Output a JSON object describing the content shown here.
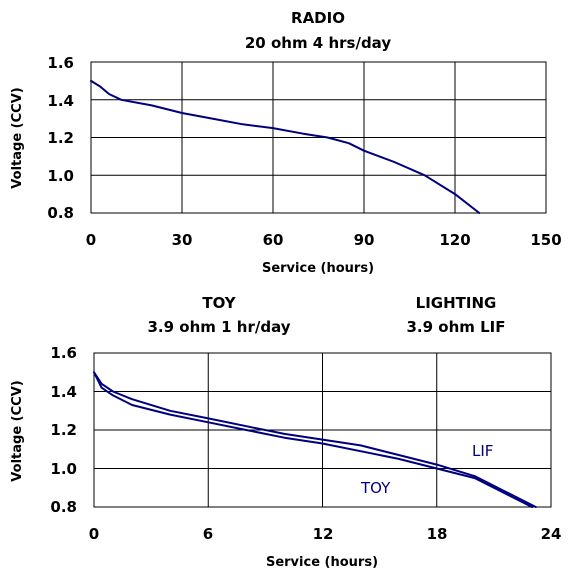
{
  "chart_data": [
    {
      "type": "line",
      "title": "RADIO",
      "subtitle": "20 ohm 4 hrs/day",
      "xlabel": "Service (hours)",
      "ylabel": "Voltage (CCV)",
      "xlim": [
        0,
        150
      ],
      "ylim": [
        0.8,
        1.6
      ],
      "xticks": [
        "0",
        "30",
        "60",
        "90",
        "120",
        "150"
      ],
      "yticks": [
        "0.8",
        "1.0",
        "1.2",
        "1.4",
        "1.6"
      ],
      "grid": true,
      "color": "#00007f",
      "series": [
        {
          "x": [
            0,
            3,
            6,
            10,
            20,
            30,
            40,
            50,
            60,
            70,
            78,
            85,
            90,
            100,
            110,
            120,
            128
          ],
          "y": [
            1.5,
            1.47,
            1.43,
            1.4,
            1.37,
            1.33,
            1.3,
            1.27,
            1.25,
            1.22,
            1.2,
            1.17,
            1.13,
            1.07,
            1.0,
            0.9,
            0.8
          ]
        }
      ]
    },
    {
      "type": "line",
      "title_left": "TOY",
      "subtitle_left": "3.9 ohm 1 hr/day",
      "title_right": "LIGHTING",
      "subtitle_right": "3.9 ohm LIF",
      "xlabel": "Service (hours)",
      "ylabel": "Voltage (CCV)",
      "xlim": [
        0,
        24
      ],
      "ylim": [
        0.8,
        1.6
      ],
      "xticks": [
        "0",
        "6",
        "12",
        "18",
        "24"
      ],
      "yticks": [
        "0.8",
        "1.0",
        "1.2",
        "1.4",
        "1.6"
      ],
      "grid": true,
      "color": "#00007f",
      "series": [
        {
          "name": "TOY",
          "x": [
            0,
            0.4,
            1,
            2,
            4,
            6,
            8,
            10,
            12,
            14,
            16,
            18,
            20,
            22,
            23
          ],
          "y": [
            1.5,
            1.42,
            1.38,
            1.33,
            1.28,
            1.24,
            1.2,
            1.16,
            1.13,
            1.09,
            1.05,
            1.0,
            0.95,
            0.85,
            0.8
          ]
        },
        {
          "name": "LIF",
          "x": [
            0,
            0.4,
            1,
            2,
            4,
            6,
            8,
            10,
            12,
            14,
            16,
            18,
            20,
            22,
            23.2
          ],
          "y": [
            1.5,
            1.44,
            1.4,
            1.36,
            1.3,
            1.26,
            1.22,
            1.18,
            1.15,
            1.12,
            1.07,
            1.02,
            0.96,
            0.86,
            0.8
          ]
        }
      ]
    }
  ]
}
